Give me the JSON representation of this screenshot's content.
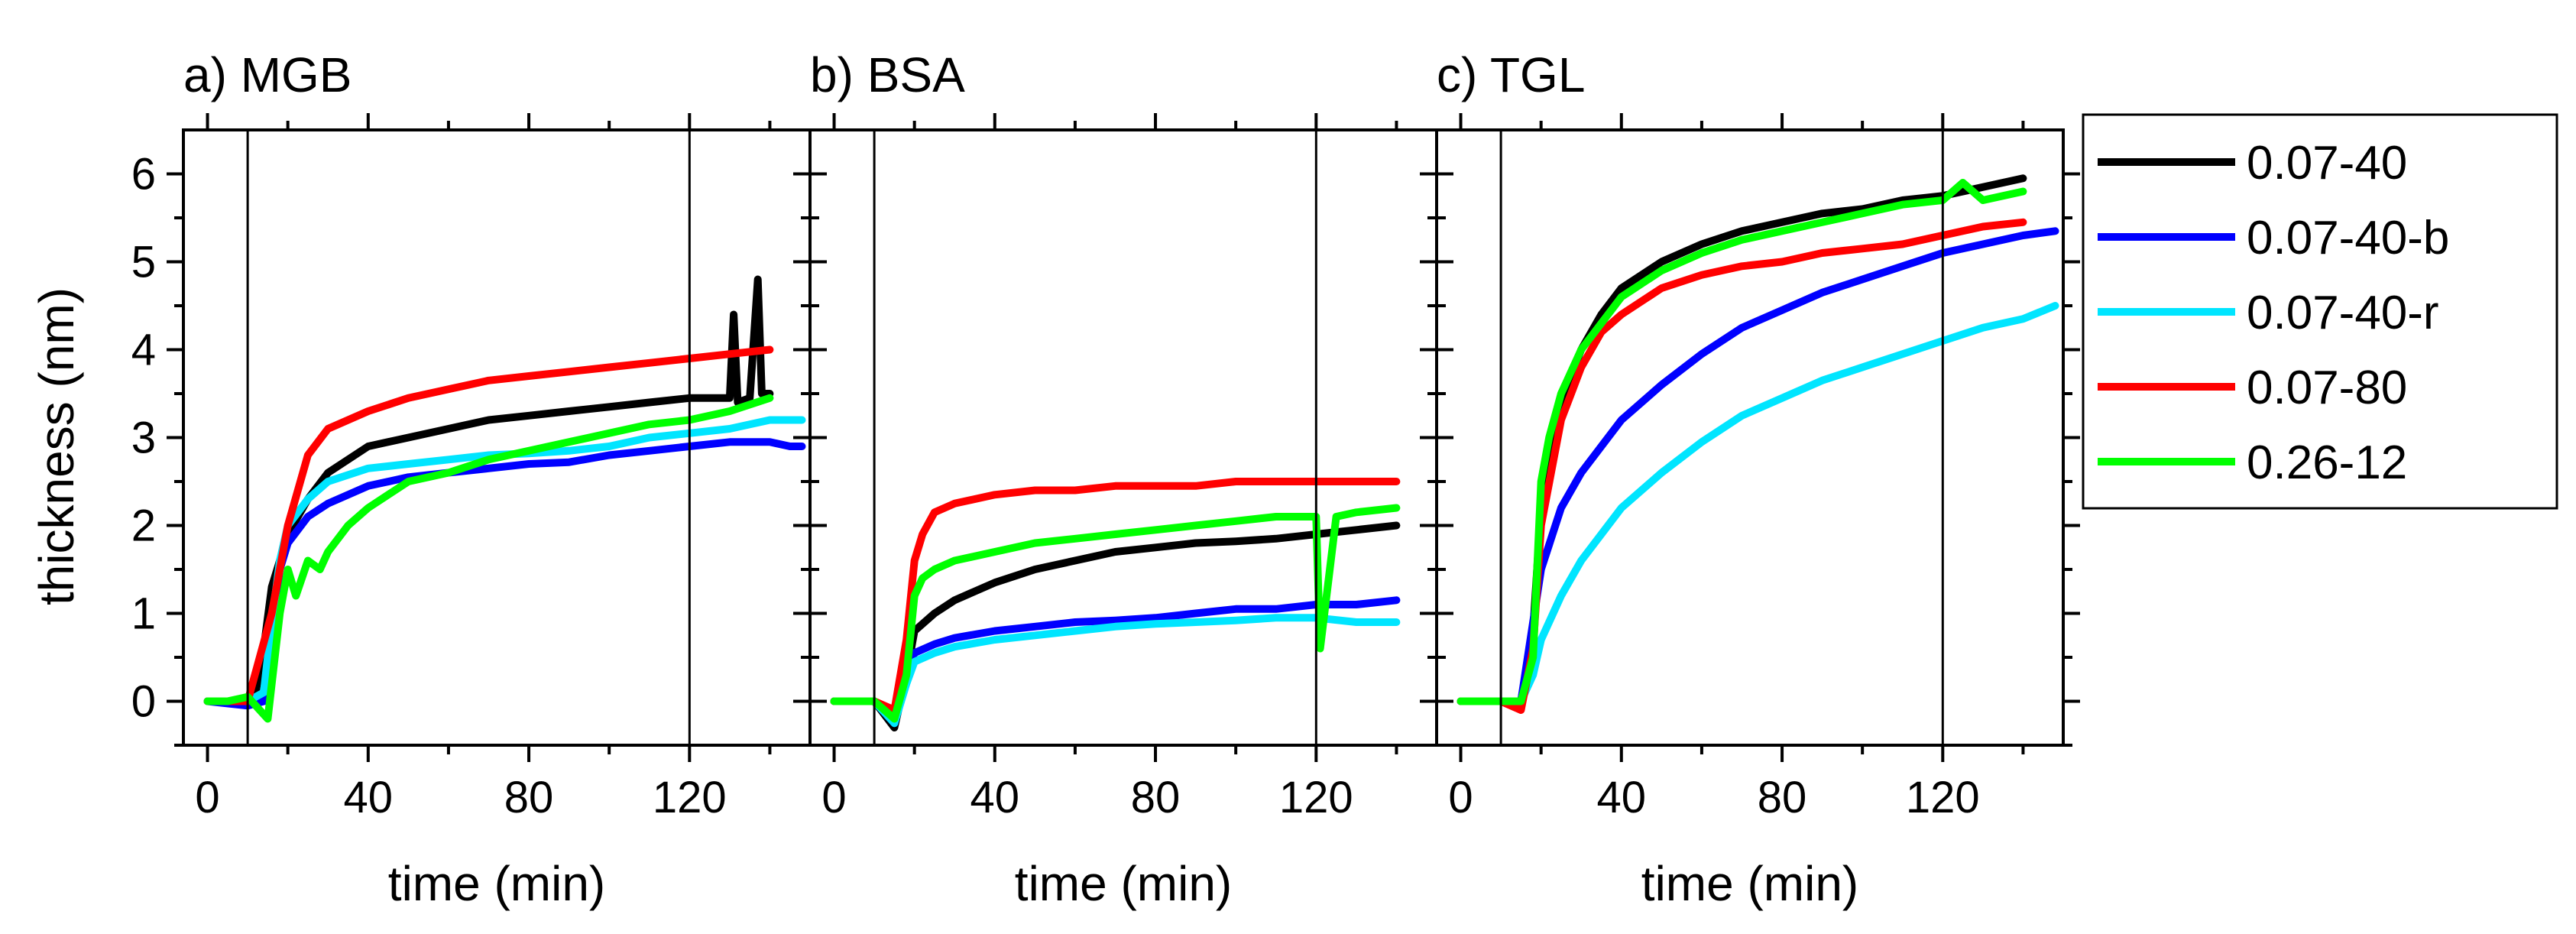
{
  "chart_data": {
    "type": "line",
    "ylabel": "thickness (nm)",
    "ylim": [
      -0.5,
      6.5
    ],
    "yticks": [
      0,
      1,
      2,
      3,
      4,
      5,
      6
    ],
    "xlabel": "time (min)",
    "xlim": [
      -6,
      150
    ],
    "xticks": [
      0,
      40,
      80,
      120
    ],
    "series_names": [
      "0.07-40",
      "0.07-40-b",
      "0.07-40-r",
      "0.07-80",
      "0.26-12"
    ],
    "series_colors": {
      "0.07-40": "#000000",
      "0.07-40-b": "#0000ff",
      "0.07-40-r": "#00e5ff",
      "0.07-80": "#ff0000",
      "0.26-12": "#00ff00"
    },
    "legend_location": "right",
    "panels": [
      {
        "title": "a) MGB",
        "vlines": [
          10,
          120
        ],
        "series": [
          {
            "name": "0.07-40",
            "x": [
              0,
              9,
              12,
              14,
              16,
              18,
              20,
              25,
              30,
              40,
              50,
              60,
              70,
              80,
              90,
              100,
              110,
              120,
              130,
              131,
              132,
              135,
              137,
              138,
              140
            ],
            "y": [
              0.0,
              0.0,
              0.1,
              0.6,
              1.3,
              1.6,
              1.9,
              2.3,
              2.6,
              2.9,
              3.0,
              3.1,
              3.2,
              3.25,
              3.3,
              3.35,
              3.4,
              3.45,
              3.45,
              4.4,
              3.4,
              3.45,
              4.8,
              3.5,
              3.5
            ]
          },
          {
            "name": "0.07-40-b",
            "x": [
              0,
              10,
              14,
              16,
              18,
              20,
              25,
              30,
              40,
              50,
              60,
              70,
              80,
              90,
              100,
              110,
              120,
              130,
              140,
              145,
              148
            ],
            "y": [
              0.0,
              -0.05,
              0.0,
              0.8,
              1.5,
              1.8,
              2.1,
              2.25,
              2.45,
              2.55,
              2.6,
              2.65,
              2.7,
              2.72,
              2.8,
              2.85,
              2.9,
              2.95,
              2.95,
              2.9,
              2.9
            ]
          },
          {
            "name": "0.07-40-r",
            "x": [
              0,
              10,
              14,
              16,
              18,
              20,
              25,
              30,
              40,
              50,
              60,
              70,
              80,
              90,
              100,
              110,
              120,
              130,
              140,
              148
            ],
            "y": [
              0.0,
              0.0,
              0.1,
              0.9,
              1.6,
              2.0,
              2.3,
              2.5,
              2.65,
              2.7,
              2.75,
              2.8,
              2.82,
              2.85,
              2.9,
              3.0,
              3.05,
              3.1,
              3.2,
              3.2
            ]
          },
          {
            "name": "0.07-80",
            "x": [
              0,
              10,
              16,
              20,
              25,
              30,
              40,
              50,
              60,
              70,
              80,
              90,
              100,
              110,
              120,
              130,
              140
            ],
            "y": [
              0.0,
              0.0,
              1.0,
              2.0,
              2.8,
              3.1,
              3.3,
              3.45,
              3.55,
              3.65,
              3.7,
              3.75,
              3.8,
              3.85,
              3.9,
              3.95,
              4.0
            ]
          },
          {
            "name": "0.26-12",
            "x": [
              0,
              5,
              10,
              15,
              18,
              20,
              22,
              25,
              28,
              30,
              35,
              40,
              50,
              60,
              70,
              80,
              90,
              100,
              110,
              120,
              130,
              140
            ],
            "y": [
              0.0,
              0.0,
              0.05,
              -0.2,
              1.0,
              1.5,
              1.2,
              1.6,
              1.5,
              1.7,
              2.0,
              2.2,
              2.5,
              2.6,
              2.75,
              2.85,
              2.95,
              3.05,
              3.15,
              3.2,
              3.3,
              3.45
            ]
          }
        ]
      },
      {
        "title": "b) BSA",
        "vlines": [
          10,
          120
        ],
        "series": [
          {
            "name": "0.07-40",
            "x": [
              0,
              10,
              15,
              18,
              20,
              25,
              30,
              40,
              50,
              60,
              70,
              80,
              90,
              100,
              110,
              120,
              130,
              140
            ],
            "y": [
              0.0,
              0.0,
              -0.3,
              0.3,
              0.8,
              1.0,
              1.15,
              1.35,
              1.5,
              1.6,
              1.7,
              1.75,
              1.8,
              1.82,
              1.85,
              1.9,
              1.95,
              2.0
            ]
          },
          {
            "name": "0.07-40-b",
            "x": [
              0,
              10,
              15,
              18,
              20,
              25,
              30,
              40,
              50,
              60,
              70,
              80,
              90,
              100,
              110,
              120,
              130,
              140
            ],
            "y": [
              0.0,
              0.0,
              -0.25,
              0.3,
              0.55,
              0.65,
              0.72,
              0.8,
              0.85,
              0.9,
              0.92,
              0.95,
              1.0,
              1.05,
              1.05,
              1.1,
              1.1,
              1.15
            ]
          },
          {
            "name": "0.07-40-r",
            "x": [
              0,
              10,
              15,
              18,
              20,
              25,
              30,
              40,
              50,
              60,
              70,
              80,
              90,
              100,
              110,
              120,
              130,
              140
            ],
            "y": [
              0.0,
              0.0,
              -0.25,
              0.2,
              0.45,
              0.55,
              0.62,
              0.7,
              0.75,
              0.8,
              0.85,
              0.88,
              0.9,
              0.92,
              0.95,
              0.95,
              0.9,
              0.9
            ]
          },
          {
            "name": "0.07-80",
            "x": [
              0,
              10,
              15,
              18,
              20,
              22,
              25,
              30,
              40,
              50,
              60,
              70,
              80,
              90,
              100,
              110,
              120,
              130,
              140
            ],
            "y": [
              0.0,
              0.0,
              -0.1,
              0.7,
              1.6,
              1.9,
              2.15,
              2.25,
              2.35,
              2.4,
              2.4,
              2.45,
              2.45,
              2.45,
              2.5,
              2.5,
              2.5,
              2.5,
              2.5
            ]
          },
          {
            "name": "0.26-12",
            "x": [
              0,
              10,
              15,
              18,
              20,
              22,
              25,
              30,
              40,
              50,
              60,
              70,
              80,
              90,
              100,
              110,
              120,
              121,
              125,
              130,
              140
            ],
            "y": [
              0.0,
              0.0,
              -0.2,
              0.3,
              1.2,
              1.4,
              1.5,
              1.6,
              1.7,
              1.8,
              1.85,
              1.9,
              1.95,
              2.0,
              2.05,
              2.1,
              2.1,
              0.6,
              2.1,
              2.15,
              2.2
            ]
          }
        ]
      },
      {
        "title": "c) TGL",
        "vlines": [
          10,
          120
        ],
        "series": [
          {
            "name": "0.07-40",
            "x": [
              0,
              10,
              15,
              18,
              20,
              25,
              30,
              35,
              40,
              50,
              60,
              70,
              80,
              90,
              100,
              110,
              120,
              130,
              140
            ],
            "y": [
              0.0,
              0.0,
              0.0,
              0.8,
              2.2,
              3.4,
              4.0,
              4.4,
              4.7,
              5.0,
              5.2,
              5.35,
              5.45,
              5.55,
              5.6,
              5.7,
              5.75,
              5.85,
              5.95
            ]
          },
          {
            "name": "0.07-40-b",
            "x": [
              0,
              10,
              15,
              17,
              20,
              25,
              30,
              35,
              40,
              50,
              60,
              70,
              80,
              90,
              100,
              110,
              120,
              130,
              140,
              148
            ],
            "y": [
              0.0,
              0.0,
              0.0,
              0.6,
              1.5,
              2.2,
              2.6,
              2.9,
              3.2,
              3.6,
              3.95,
              4.25,
              4.45,
              4.65,
              4.8,
              4.95,
              5.1,
              5.2,
              5.3,
              5.35
            ]
          },
          {
            "name": "0.07-40-r",
            "x": [
              0,
              10,
              15,
              18,
              20,
              25,
              30,
              40,
              50,
              60,
              70,
              80,
              90,
              100,
              110,
              120,
              130,
              140,
              148
            ],
            "y": [
              0.0,
              0.0,
              0.0,
              0.3,
              0.7,
              1.2,
              1.6,
              2.2,
              2.6,
              2.95,
              3.25,
              3.45,
              3.65,
              3.8,
              3.95,
              4.1,
              4.25,
              4.35,
              4.5
            ]
          },
          {
            "name": "0.07-80",
            "x": [
              0,
              10,
              15,
              18,
              20,
              25,
              30,
              35,
              40,
              50,
              60,
              70,
              80,
              90,
              100,
              110,
              120,
              130,
              140
            ],
            "y": [
              0.0,
              0.0,
              -0.1,
              0.6,
              2.0,
              3.2,
              3.8,
              4.2,
              4.4,
              4.7,
              4.85,
              4.95,
              5.0,
              5.1,
              5.15,
              5.2,
              5.3,
              5.4,
              5.45
            ]
          },
          {
            "name": "0.26-12",
            "x": [
              0,
              10,
              15,
              18,
              20,
              22,
              25,
              30,
              35,
              40,
              50,
              60,
              70,
              80,
              90,
              100,
              110,
              120,
              125,
              130,
              140
            ],
            "y": [
              0.0,
              0.0,
              0.0,
              0.5,
              2.5,
              3.0,
              3.5,
              4.0,
              4.3,
              4.6,
              4.9,
              5.1,
              5.25,
              5.35,
              5.45,
              5.55,
              5.65,
              5.7,
              5.9,
              5.7,
              5.8
            ]
          }
        ]
      }
    ]
  }
}
